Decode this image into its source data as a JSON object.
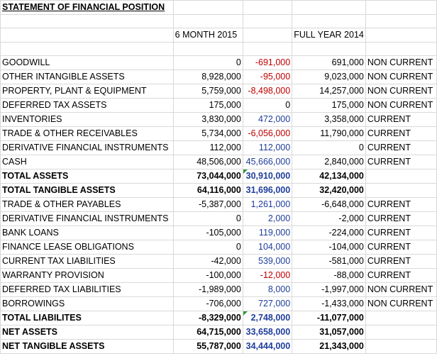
{
  "sheet": {
    "title": "STATEMENT OF FINANCIAL POSITION",
    "headers": {
      "h1": "6 MONTH 2015",
      "h2": "",
      "h3": "FULL YEAR 2014",
      "h4": ""
    },
    "rows": [
      {
        "label": "GOODWILL",
        "v2015": "0",
        "diff": "-691,000",
        "v2014": "691,000",
        "cls": "NON CURRENT"
      },
      {
        "label": "OTHER INTANGIBLE ASSETS",
        "v2015": "8,928,000",
        "diff": "-95,000",
        "v2014": "9,023,000",
        "cls": "NON CURRENT"
      },
      {
        "label": "PROPERTY, PLANT & EQUIPMENT",
        "v2015": "5,759,000",
        "diff": "-8,498,000",
        "v2014": "14,257,000",
        "cls": "NON CURRENT"
      },
      {
        "label": "DEFERRED TAX ASSETS",
        "v2015": "175,000",
        "diff": "0",
        "v2014": "175,000",
        "cls": "NON CURRENT"
      },
      {
        "label": "INVENTORIES",
        "v2015": "3,830,000",
        "diff": "472,000",
        "v2014": "3,358,000",
        "cls": "CURRENT"
      },
      {
        "label": "TRADE & OTHER RECEIVABLES",
        "v2015": "5,734,000",
        "diff": "-6,056,000",
        "v2014": "11,790,000",
        "cls": "CURRENT"
      },
      {
        "label": "DERIVATIVE FINANCIAL INSTRUMENTS",
        "v2015": "112,000",
        "diff": "112,000",
        "v2014": "0",
        "cls": "CURRENT"
      },
      {
        "label": "CASH",
        "v2015": "48,506,000",
        "diff": "45,666,000",
        "v2014": "2,840,000",
        "cls": "CURRENT"
      },
      {
        "label": "TOTAL ASSETS",
        "v2015": "73,044,000",
        "diff": "30,910,000",
        "v2014": "42,134,000",
        "cls": ""
      },
      {
        "label": "TOTAL TANGIBLE ASSETS",
        "v2015": "64,116,000",
        "diff": "31,696,000",
        "v2014": "32,420,000",
        "cls": ""
      },
      {
        "label": "TRADE & OTHER PAYABLES",
        "v2015": "-5,387,000",
        "diff": "1,261,000",
        "v2014": "-6,648,000",
        "cls": "CURRENT"
      },
      {
        "label": "DERIVATIVE FINANCIAL INSTRUMENTS",
        "v2015": "0",
        "diff": "2,000",
        "v2014": "-2,000",
        "cls": "CURRENT"
      },
      {
        "label": "BANK LOANS",
        "v2015": "-105,000",
        "diff": "119,000",
        "v2014": "-224,000",
        "cls": "CURRENT"
      },
      {
        "label": "FINANCE LEASE OBLIGATIONS",
        "v2015": "0",
        "diff": "104,000",
        "v2014": "-104,000",
        "cls": "CURRENT"
      },
      {
        "label": "CURRENT TAX LIABILITIES",
        "v2015": "-42,000",
        "diff": "539,000",
        "v2014": "-581,000",
        "cls": "CURRENT"
      },
      {
        "label": "WARRANTY PROVISION",
        "v2015": "-100,000",
        "diff": "-12,000",
        "v2014": "-88,000",
        "cls": "CURRENT"
      },
      {
        "label": "DEFERRED TAX LIABILITIES",
        "v2015": "-1,989,000",
        "diff": "8,000",
        "v2014": "-1,997,000",
        "cls": "NON CURRENT"
      },
      {
        "label": "BORROWINGS",
        "v2015": "-706,000",
        "diff": "727,000",
        "v2014": "-1,433,000",
        "cls": "NON CURRENT"
      },
      {
        "label": "TOTAL LIABILITES",
        "v2015": "-8,329,000",
        "diff": "2,748,000",
        "v2014": "-11,077,000",
        "cls": ""
      },
      {
        "label": "NET ASSETS",
        "v2015": "64,715,000",
        "diff": "33,658,000",
        "v2014": "31,057,000",
        "cls": ""
      },
      {
        "label": "NET TANGIBLE ASSETS",
        "v2015": "55,787,000",
        "diff": "34,444,000",
        "v2014": "21,343,000",
        "cls": ""
      }
    ],
    "bold_rows": [
      8,
      9,
      18,
      19,
      20
    ],
    "marker_rows": [
      8,
      18
    ],
    "colors": {
      "negative_diff": "#c00000",
      "positive_diff": "#1f3e9a",
      "zero_diff": "#000000",
      "marker": "#2e9a3a"
    }
  }
}
